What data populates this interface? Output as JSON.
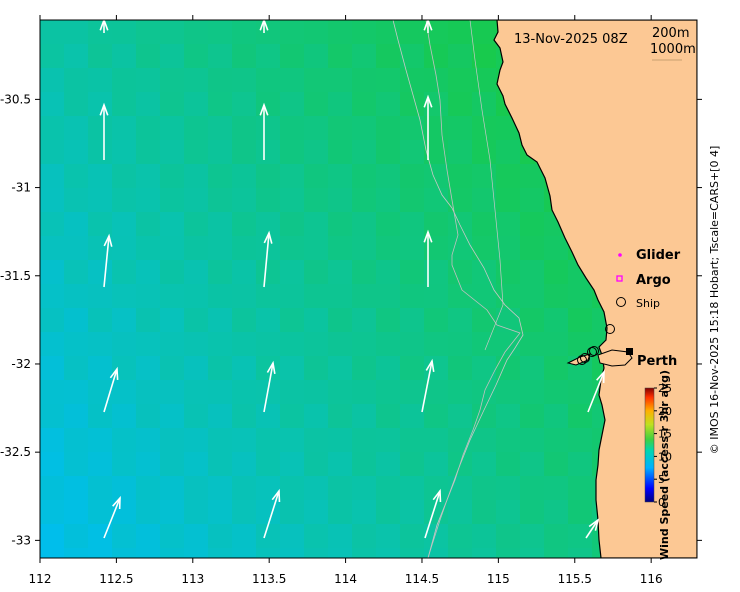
{
  "map": {
    "date_label": "13-Nov-2025 08Z",
    "isobath_labels": [
      "200m",
      "1000m"
    ],
    "city_label": "Perth",
    "x_ticks": [
      "112",
      "112.5",
      "113",
      "113.5",
      "114",
      "114.5",
      "115",
      "115.5",
      "116"
    ],
    "y_ticks": [
      "-30.5",
      "-31",
      "-31.5",
      "-32",
      "-32.5",
      "-33"
    ],
    "lon_range": [
      112,
      116.3
    ],
    "lat_range": [
      -33.1,
      -30.05
    ],
    "legend": [
      {
        "label": "Glider",
        "symbol": "dot",
        "color": "#ff00ff"
      },
      {
        "label": "Argo",
        "symbol": "square",
        "color": "#ff00ff"
      },
      {
        "label": "Ship",
        "symbol": "circle",
        "color": "#000000"
      }
    ],
    "colorbar": {
      "title": "Wind Speed (access-r 3hr avg)",
      "ticks": [
        "25",
        "20",
        "15",
        "10",
        "5",
        "0"
      ],
      "range": [
        0,
        25
      ]
    },
    "credit": "© IMOS 16-Nov-2025 15:18 Hobart; Tscale=CARS+[0 4]",
    "colors": {
      "land": "#fcc894",
      "coast": "#000000",
      "isobath": "#c0c0c0",
      "vector": "#ffffff"
    }
  }
}
